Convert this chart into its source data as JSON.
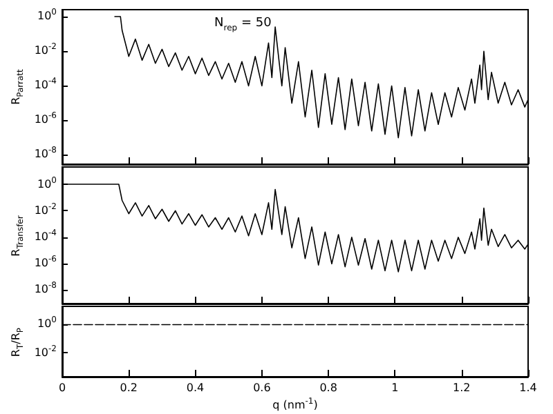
{
  "chart_data": [
    {
      "type": "line",
      "ylabel": "R$_{Parratt}$",
      "log": "y",
      "xlim": [
        0,
        1.4
      ],
      "xticks": [
        0,
        0.2,
        0.4,
        0.6,
        0.8,
        1,
        1.2,
        1.4
      ],
      "ylim": [
        3e-09,
        2.5
      ],
      "yticks": [
        {
          "value": 1,
          "label": "10$^{0}$"
        },
        {
          "value": 0.01,
          "label": "10$^{-2}$"
        },
        {
          "value": 0.0001,
          "label": "10$^{-4}$"
        },
        {
          "value": 1e-06,
          "label": "10$^{-6}$"
        },
        {
          "value": 1e-08,
          "label": "10$^{-8}$"
        }
      ],
      "tick_labels": "y",
      "marker": "none",
      "annotations": [
        "N$_{rep}$ = 50"
      ],
      "series": [
        {
          "color": "#000000",
          "x": [
            0.158,
            0.175,
            0.18,
            0.2,
            0.22,
            0.24,
            0.26,
            0.28,
            0.3,
            0.32,
            0.34,
            0.36,
            0.38,
            0.4,
            0.42,
            0.44,
            0.46,
            0.48,
            0.5,
            0.52,
            0.54,
            0.56,
            0.58,
            0.6,
            0.62,
            0.63,
            0.64,
            0.66,
            0.67,
            0.69,
            0.71,
            0.73,
            0.75,
            0.77,
            0.79,
            0.81,
            0.83,
            0.85,
            0.87,
            0.89,
            0.91,
            0.93,
            0.95,
            0.97,
            0.99,
            1.01,
            1.03,
            1.05,
            1.07,
            1.09,
            1.11,
            1.13,
            1.15,
            1.17,
            1.19,
            1.21,
            1.23,
            1.24,
            1.255,
            1.26,
            1.267,
            1.28,
            1.29,
            1.31,
            1.33,
            1.35,
            1.37,
            1.39,
            1.4
          ],
          "values": [
            1,
            1,
            0.16,
            0.005,
            0.05,
            0.003,
            0.025,
            0.002,
            0.013,
            0.0013,
            0.008,
            0.0008,
            0.005,
            0.0005,
            0.004,
            0.0004,
            0.0025,
            0.00025,
            0.002,
            0.00016,
            0.0025,
            0.0001,
            0.005,
            0.0001,
            0.03,
            0.0003,
            0.25,
            0.0001,
            0.016,
            1e-05,
            0.0025,
            1.6e-06,
            0.0008,
            4e-07,
            0.0005,
            6e-07,
            0.0003,
            3e-07,
            0.00025,
            5e-07,
            0.00016,
            2.5e-07,
            0.00013,
            1.6e-07,
            0.0001,
            1e-07,
            8e-05,
            1.3e-07,
            6e-05,
            2.5e-07,
            4e-05,
            6e-07,
            4e-05,
            1.6e-06,
            8e-05,
            4e-06,
            0.00025,
            1e-05,
            0.0016,
            6e-05,
            0.01,
            1.6e-05,
            0.0006,
            1e-05,
            0.00016,
            8e-06,
            6e-05,
            6e-06,
            1.6e-05
          ]
        }
      ]
    },
    {
      "type": "line",
      "ylabel": "R$_{Transfer}$",
      "log": "y",
      "xlim": [
        0,
        1.4
      ],
      "xticks": [
        0,
        0.2,
        0.4,
        0.6,
        0.8,
        1,
        1.2,
        1.4
      ],
      "ylim": [
        1e-09,
        20
      ],
      "yticks": [
        {
          "value": 1,
          "label": "10$^{0}$"
        },
        {
          "value": 0.01,
          "label": "10$^{-2}$"
        },
        {
          "value": 0.0001,
          "label": "10$^{-4}$"
        },
        {
          "value": 1e-06,
          "label": "10$^{-6}$"
        },
        {
          "value": 1e-08,
          "label": "10$^{-8}$"
        }
      ],
      "tick_labels": "y",
      "marker": "none",
      "series": [
        {
          "color": "#000000",
          "x": [
            0,
            0.17,
            0.18,
            0.2,
            0.22,
            0.24,
            0.26,
            0.28,
            0.3,
            0.32,
            0.34,
            0.36,
            0.38,
            0.4,
            0.42,
            0.44,
            0.46,
            0.48,
            0.5,
            0.52,
            0.54,
            0.56,
            0.58,
            0.6,
            0.62,
            0.63,
            0.64,
            0.66,
            0.67,
            0.69,
            0.71,
            0.73,
            0.75,
            0.77,
            0.79,
            0.81,
            0.83,
            0.85,
            0.87,
            0.89,
            0.91,
            0.93,
            0.95,
            0.97,
            0.99,
            1.01,
            1.03,
            1.05,
            1.07,
            1.09,
            1.11,
            1.13,
            1.15,
            1.17,
            1.19,
            1.21,
            1.23,
            1.24,
            1.255,
            1.26,
            1.267,
            1.28,
            1.29,
            1.31,
            1.33,
            1.35,
            1.37,
            1.39,
            1.4
          ],
          "values": [
            1,
            1,
            0.06,
            0.006,
            0.04,
            0.004,
            0.025,
            0.0025,
            0.013,
            0.0016,
            0.01,
            0.001,
            0.006,
            0.0008,
            0.005,
            0.0006,
            0.003,
            0.0004,
            0.003,
            0.00025,
            0.004,
            0.00013,
            0.006,
            0.00016,
            0.04,
            0.0004,
            0.4,
            0.00016,
            0.02,
            1.6e-05,
            0.003,
            2.5e-06,
            0.0006,
            8e-07,
            0.00025,
            1e-06,
            0.00016,
            6e-07,
            0.0001,
            8e-07,
            8e-05,
            4e-07,
            6e-05,
            3e-07,
            6e-05,
            2.5e-07,
            6e-05,
            3e-07,
            6e-05,
            4e-07,
            6e-05,
            1.6e-06,
            6e-05,
            2.5e-06,
            0.0001,
            6e-06,
            0.00025,
            1.3e-05,
            0.0025,
            6e-05,
            0.016,
            2.5e-05,
            0.0004,
            2e-05,
            0.00016,
            1.6e-05,
            6e-05,
            1.3e-05,
            3e-05
          ]
        }
      ]
    },
    {
      "type": "line",
      "ylabel": "R$_{T}$/R$_{P}$",
      "xlabel": "q (nm$^{-1}$)",
      "log": "y",
      "xlim": [
        0,
        1.4
      ],
      "xticks": [
        0,
        0.2,
        0.4,
        0.6,
        0.8,
        1,
        1.2,
        1.4
      ],
      "ylim": [
        0.0002,
        20
      ],
      "yticks": [
        {
          "value": 1,
          "label": "10$^{0}$"
        },
        {
          "value": 0.01,
          "label": "10$^{-2}$"
        }
      ],
      "marker": "none",
      "line_style": "dashed",
      "series": [
        {
          "color": "#000000",
          "x": [
            0,
            1.4
          ],
          "values": [
            1,
            1
          ]
        }
      ]
    }
  ]
}
